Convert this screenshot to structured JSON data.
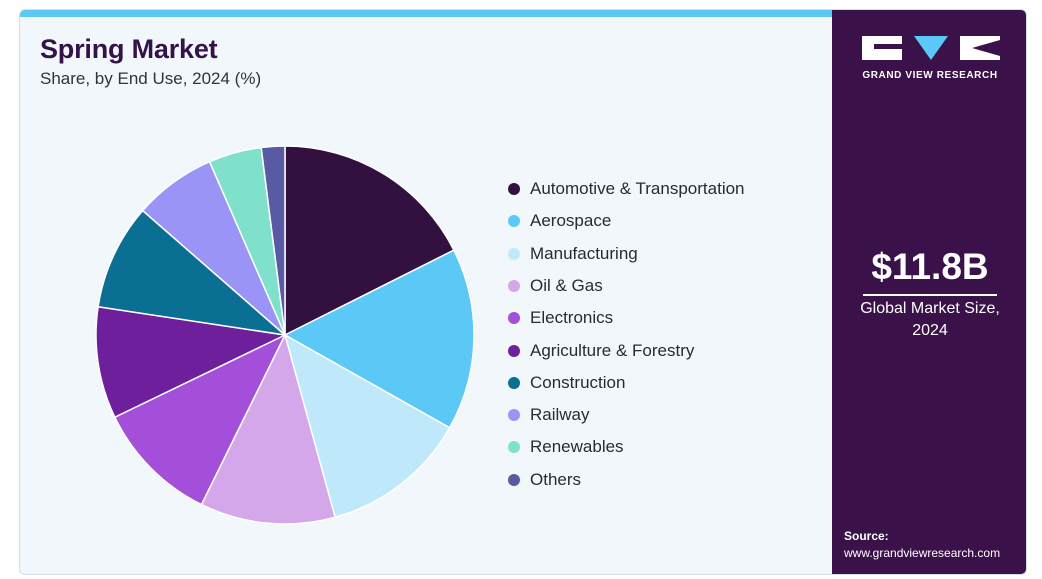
{
  "header": {
    "title": "Spring Market",
    "subtitle": "Share, by End Use, 2024 (%)"
  },
  "chart_data": {
    "type": "pie",
    "title": "Spring Market",
    "subtitle": "Share, by End Use, 2024 (%)",
    "start_angle_deg": 0,
    "direction": "clockwise",
    "legend_position": "right",
    "slices": [
      {
        "label": "Automotive & Transportation",
        "value": 17.5,
        "color": "#32103f"
      },
      {
        "label": "Aerospace",
        "value": 15.5,
        "color": "#5bc8f5"
      },
      {
        "label": "Manufacturing",
        "value": 12.5,
        "color": "#bfe9fa"
      },
      {
        "label": "Oil & Gas",
        "value": 11.5,
        "color": "#d4a6ea"
      },
      {
        "label": "Electronics",
        "value": 10.5,
        "color": "#a44fd9"
      },
      {
        "label": "Agriculture & Forestry",
        "value": 9.5,
        "color": "#6e1f9c"
      },
      {
        "label": "Construction",
        "value": 9.0,
        "color": "#0b6e93"
      },
      {
        "label": "Railway",
        "value": 7.0,
        "color": "#9a94f7"
      },
      {
        "label": "Renewables",
        "value": 4.5,
        "color": "#7fe0cc"
      },
      {
        "label": "Others",
        "value": 2.0,
        "color": "#585aa3"
      }
    ]
  },
  "sidebar": {
    "logo_text": "GRAND VIEW RESEARCH",
    "market_value": "$11.8B",
    "market_label": "Global Market Size, 2024",
    "source_label": "Source:",
    "source_url": "www.grandviewresearch.com"
  }
}
